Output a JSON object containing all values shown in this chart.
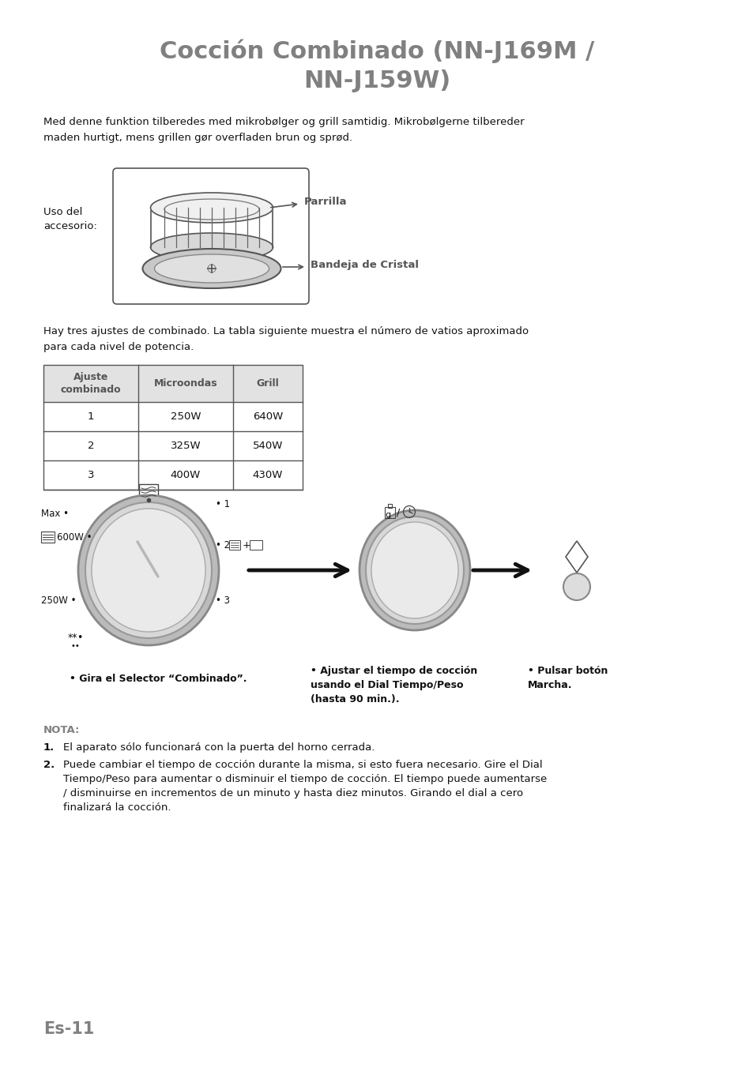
{
  "title_line1": "Cocción Combinado (NN-J169M /",
  "title_line2": "NN-J159W)",
  "title_color": "#808080",
  "bg_color": "#ffffff",
  "body_color": "#111111",
  "gray_color": "#808080",
  "intro_text_1": "Med denne funktion tilberedes med mikrobølger og grill samtidig. Mikrobølgerne tilbereder",
  "intro_text_2": "maden hurtigt, mens grillen gør overfladen brun og sprød.",
  "uso_label": "Uso del\naccesorio:",
  "parrilla_label": "Parrilla",
  "bandeja_label": "Bandeja de Cristal",
  "table_intro_1": "Hay tres ajustes de combinado. La tabla siguiente muestra el número de vatios aproximado",
  "table_intro_2": "para cada nivel de potencia.",
  "table_header_0": "Ajuste\ncombinado",
  "table_header_1": "Microondas",
  "table_header_2": "Grill",
  "table_rows": [
    [
      "1",
      "250W",
      "640W"
    ],
    [
      "2",
      "325W",
      "540W"
    ],
    [
      "3",
      "400W",
      "430W"
    ]
  ],
  "label_selector": "• Gira el Selector “Combinado”.",
  "label_time_1": "• Ajustar el tiempo de cocción",
  "label_time_2": "usando el Dial Tiempo/Peso",
  "label_time_3": "(hasta 90 min.).",
  "label_start_1": "• Pulsar botón",
  "label_start_2": "Marcha.",
  "nota_title": "NOTA:",
  "nota_1": "El aparato sólo funcionará con la puerta del horno cerrada.",
  "nota_2a": "Puede cambiar el tiempo de cocción durante la misma, si esto fuera necesario. Gire el Dial",
  "nota_2b": "Tiempo/Peso para aumentar o disminuir el tiempo de cocción. El tiempo puede aumentarse",
  "nota_2c": "/ disminuirse en incrementos de un minuto y hasta diez minutos. Girando el dial a cero",
  "nota_2d": "finalizará la cocción.",
  "page_label": "Es-11",
  "max_label": "Max •",
  "w600_label": "600W •",
  "w250_label": "250W •",
  "lbl1": "• 1",
  "lbl2": "• 2",
  "lbl3": "• 3",
  "bullet": "•"
}
